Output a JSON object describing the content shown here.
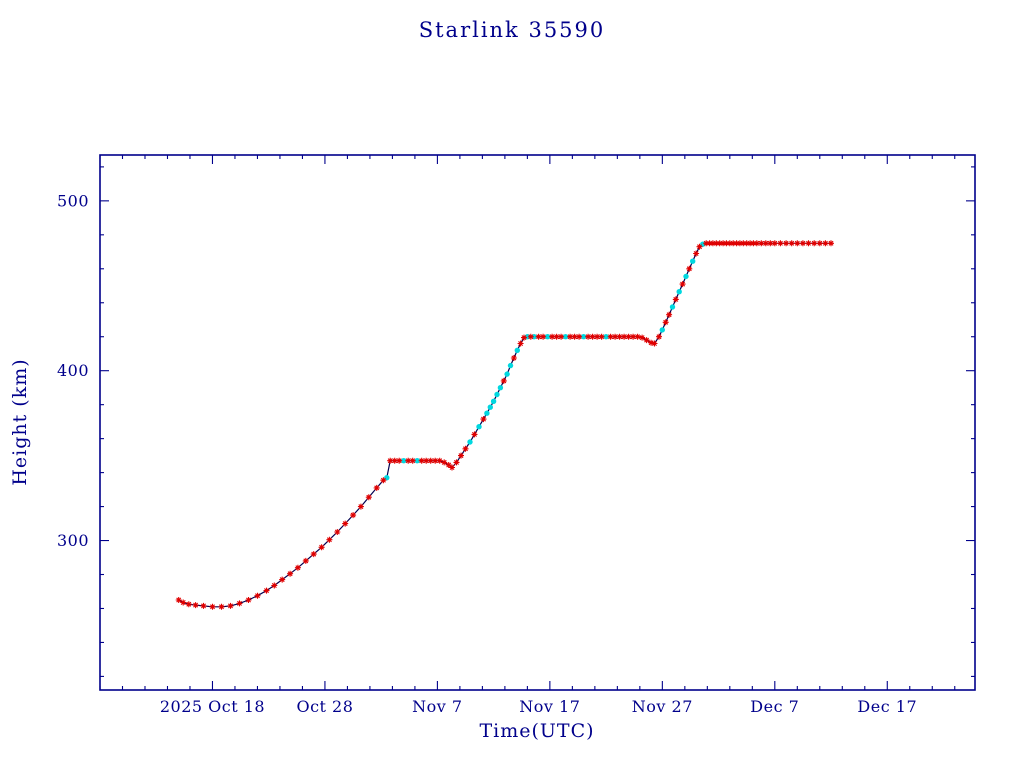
{
  "chart_data": {
    "type": "line",
    "title": "Starlink 35590",
    "xlabel": "Time(UTC)",
    "ylabel": "Height (km)",
    "x_axis_note": "x values are days; day 10 = 2025 Oct 18, ticks every 10 days",
    "xlim": [
      0,
      77.8
    ],
    "ylim": [
      212,
      527
    ],
    "x_ticks": [
      {
        "pos": 10,
        "label": "2025 Oct 18"
      },
      {
        "pos": 20,
        "label": "Oct 28"
      },
      {
        "pos": 30,
        "label": "Nov 7"
      },
      {
        "pos": 40,
        "label": "Nov 17"
      },
      {
        "pos": 50,
        "label": "Nov 27"
      },
      {
        "pos": 60,
        "label": "Dec 7"
      },
      {
        "pos": 70,
        "label": "Dec 17"
      }
    ],
    "y_ticks": [
      {
        "pos": 300,
        "label": "300"
      },
      {
        "pos": 400,
        "label": "400"
      },
      {
        "pos": 500,
        "label": "500"
      }
    ],
    "x_minor_step": 2,
    "y_minor_step": 20,
    "grid": false,
    "legend": null,
    "axis_color": "#00008b",
    "line_color": "#000050",
    "marker_colors": {
      "r": "#e00000",
      "c": "#00d8e0"
    },
    "points": [
      [
        7.0,
        265
      ],
      [
        7.4,
        263.5
      ],
      [
        7.9,
        262.5
      ],
      [
        8.5,
        262
      ],
      [
        9.2,
        261.5
      ],
      [
        10.0,
        261
      ],
      [
        10.8,
        261
      ],
      [
        11.6,
        261.5
      ],
      [
        12.4,
        263
      ],
      [
        13.2,
        265
      ],
      [
        14.0,
        267.5
      ],
      [
        14.8,
        270.5
      ],
      [
        15.5,
        273.5
      ],
      [
        16.2,
        277
      ],
      [
        16.9,
        280.5
      ],
      [
        17.6,
        284
      ],
      [
        18.3,
        288
      ],
      [
        19.0,
        292
      ],
      [
        19.7,
        296
      ],
      [
        20.4,
        300.5
      ],
      [
        21.1,
        305
      ],
      [
        21.8,
        310
      ],
      [
        22.5,
        315
      ],
      [
        23.2,
        320
      ],
      [
        23.9,
        325.5
      ],
      [
        24.6,
        331
      ],
      [
        25.2,
        335.5
      ],
      [
        25.5,
        337,
        "c"
      ],
      [
        25.8,
        347
      ],
      [
        26.2,
        347
      ],
      [
        26.6,
        347
      ],
      [
        27.0,
        347,
        "c"
      ],
      [
        27.4,
        347
      ],
      [
        27.8,
        347
      ],
      [
        28.2,
        347,
        "c"
      ],
      [
        28.6,
        347
      ],
      [
        29.0,
        347
      ],
      [
        29.4,
        347
      ],
      [
        29.8,
        347
      ],
      [
        30.2,
        347
      ],
      [
        30.6,
        346
      ],
      [
        31.0,
        344.5
      ],
      [
        31.3,
        343
      ],
      [
        31.7,
        346
      ],
      [
        32.1,
        350
      ],
      [
        32.5,
        354
      ],
      [
        32.9,
        358,
        "c"
      ],
      [
        33.3,
        362.5
      ],
      [
        33.7,
        367,
        "c"
      ],
      [
        34.1,
        371.5
      ],
      [
        34.4,
        375,
        "c"
      ],
      [
        34.7,
        378.5,
        "c"
      ],
      [
        35.0,
        382,
        "c"
      ],
      [
        35.3,
        386,
        "c"
      ],
      [
        35.6,
        390,
        "c"
      ],
      [
        35.9,
        394
      ],
      [
        36.2,
        398,
        "c"
      ],
      [
        36.5,
        403,
        "c"
      ],
      [
        36.8,
        407.5
      ],
      [
        37.1,
        412,
        "c"
      ],
      [
        37.4,
        416
      ],
      [
        37.7,
        419.5
      ],
      [
        38.0,
        420,
        "c"
      ],
      [
        38.3,
        420
      ],
      [
        38.6,
        420,
        "c"
      ],
      [
        39.0,
        420
      ],
      [
        39.4,
        420
      ],
      [
        39.8,
        420,
        "c"
      ],
      [
        40.2,
        420
      ],
      [
        40.6,
        420
      ],
      [
        41.0,
        420
      ],
      [
        41.4,
        420,
        "c"
      ],
      [
        41.8,
        420
      ],
      [
        42.2,
        420
      ],
      [
        42.6,
        420
      ],
      [
        43.0,
        420,
        "c"
      ],
      [
        43.4,
        420
      ],
      [
        43.8,
        420
      ],
      [
        44.2,
        420
      ],
      [
        44.6,
        420
      ],
      [
        45.0,
        420,
        "c"
      ],
      [
        45.4,
        420
      ],
      [
        45.8,
        420
      ],
      [
        46.2,
        420
      ],
      [
        46.6,
        420
      ],
      [
        47.0,
        420
      ],
      [
        47.4,
        420
      ],
      [
        47.8,
        420
      ],
      [
        48.2,
        419.5
      ],
      [
        48.6,
        418
      ],
      [
        49.0,
        416.5
      ],
      [
        49.3,
        416
      ],
      [
        49.7,
        420
      ],
      [
        50.0,
        424,
        "c"
      ],
      [
        50.3,
        428.5
      ],
      [
        50.6,
        433
      ],
      [
        50.9,
        437.5,
        "c"
      ],
      [
        51.2,
        442
      ],
      [
        51.5,
        446.5,
        "c"
      ],
      [
        51.8,
        451
      ],
      [
        52.1,
        455.5,
        "c"
      ],
      [
        52.4,
        460
      ],
      [
        52.7,
        464.5,
        "c"
      ],
      [
        53.0,
        469
      ],
      [
        53.3,
        473
      ],
      [
        53.6,
        474.5,
        "c"
      ],
      [
        53.9,
        475
      ],
      [
        54.2,
        475
      ],
      [
        54.5,
        475
      ],
      [
        54.8,
        475
      ],
      [
        55.1,
        475
      ],
      [
        55.4,
        475
      ],
      [
        55.7,
        475
      ],
      [
        56.0,
        475
      ],
      [
        56.3,
        475
      ],
      [
        56.6,
        475
      ],
      [
        56.9,
        475
      ],
      [
        57.2,
        475
      ],
      [
        57.5,
        475
      ],
      [
        57.8,
        475
      ],
      [
        58.1,
        475
      ],
      [
        58.4,
        475
      ],
      [
        58.8,
        475
      ],
      [
        59.2,
        475
      ],
      [
        59.6,
        475
      ],
      [
        60.0,
        475
      ],
      [
        60.5,
        475
      ],
      [
        61.0,
        475
      ],
      [
        61.5,
        475
      ],
      [
        62.0,
        475
      ],
      [
        62.5,
        475
      ],
      [
        63.0,
        475
      ],
      [
        63.5,
        475
      ],
      [
        64.0,
        475
      ],
      [
        64.5,
        475
      ],
      [
        65.0,
        475
      ]
    ]
  }
}
